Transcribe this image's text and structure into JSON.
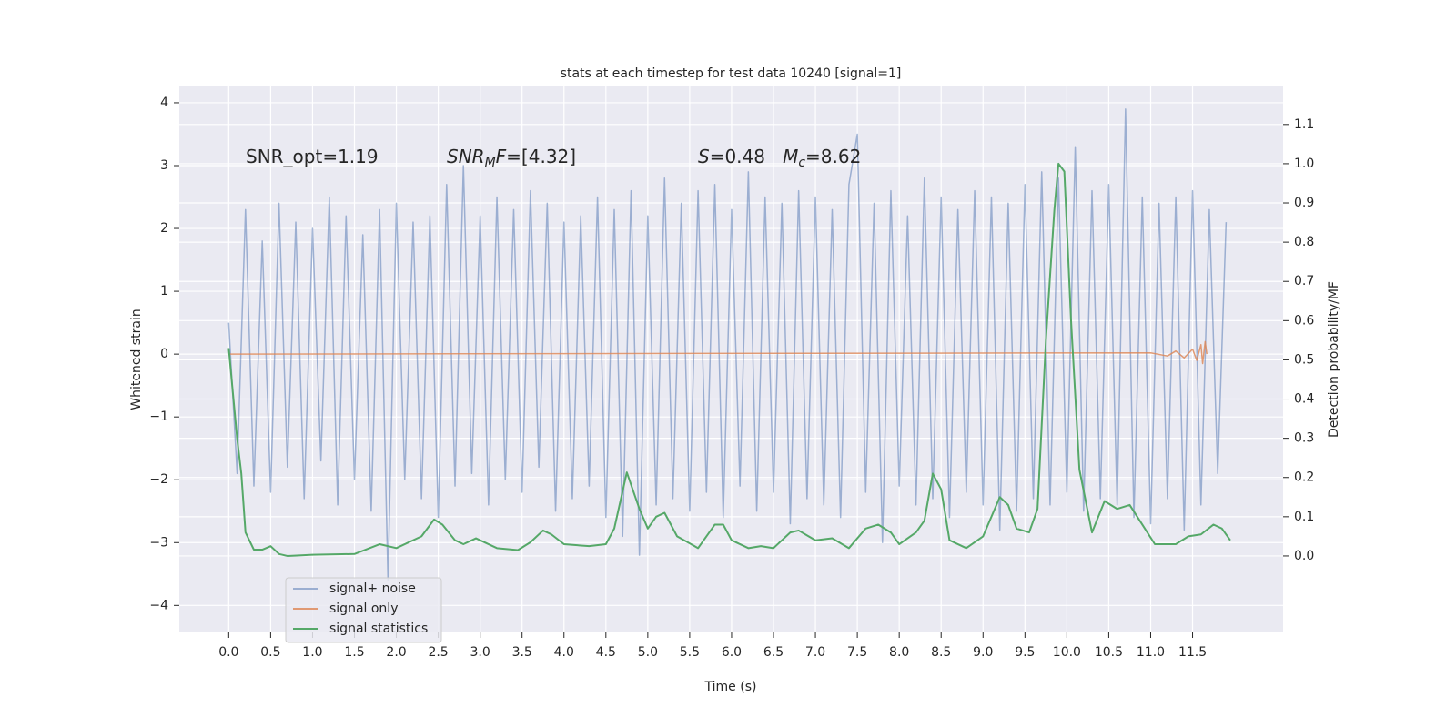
{
  "chart_data": {
    "type": "line",
    "title": "stats at each timestep for test data 10240 [signal=1]",
    "x_label": "Time (s)",
    "y_label": "Whitened strain",
    "y2_label": "Detection probability/MF",
    "xlim": [
      -0.59,
      12.58
    ],
    "ylim": [
      -4.43,
      4.26
    ],
    "y2lim": [
      -0.195,
      1.197
    ],
    "xticks": [
      {
        "value": 0,
        "label": "0.0"
      },
      0.5,
      {
        "value": 1,
        "label": "1.0"
      },
      1.5,
      {
        "value": 2,
        "label": "2.0"
      },
      2.5,
      {
        "value": 3,
        "label": "3.0"
      },
      3.5,
      {
        "value": 4,
        "label": "4.0"
      },
      4.5,
      {
        "value": 5,
        "label": "5.0"
      },
      5.5,
      {
        "value": 6,
        "label": "6.0"
      },
      6.5,
      {
        "value": 7,
        "label": "7.0"
      },
      7.5,
      {
        "value": 8,
        "label": "8.0"
      },
      8.5,
      {
        "value": 9,
        "label": "9.0"
      },
      9.5,
      {
        "value": 10,
        "label": "10.0"
      },
      10.5,
      {
        "value": 11,
        "label": "11.0"
      },
      11.5
    ],
    "yticks": [
      {
        "value": -4,
        "label": "−4"
      },
      {
        "value": -3,
        "label": "−3"
      },
      {
        "value": -2,
        "label": "−2"
      },
      {
        "value": -1,
        "label": "−1"
      },
      0,
      1,
      2,
      3,
      4
    ],
    "y2ticks": [
      {
        "value": 0,
        "label": "0.0"
      },
      0.1,
      0.2,
      0.3,
      0.4,
      0.5,
      0.6,
      0.7,
      0.8,
      0.9,
      {
        "value": 1,
        "label": "1.0"
      },
      1.1
    ],
    "grid": true,
    "legend": "lower left",
    "annotations": [
      {
        "segments": [
          {
            "text": "SNR_opt=1.19"
          }
        ]
      },
      {
        "segments": [
          {
            "text": "SNR",
            "italic": true
          },
          {
            "text": "M",
            "italic": true,
            "sub": true
          },
          {
            "text": "F",
            "italic": true
          },
          {
            "text": "=[4.32]"
          }
        ]
      },
      {
        "segments": [
          {
            "text": "S",
            "italic": true
          },
          {
            "text": "=0.48   "
          },
          {
            "text": "M",
            "italic": true
          },
          {
            "text": "c",
            "italic": true,
            "sub": true
          },
          {
            "text": "=8.62"
          }
        ]
      }
    ],
    "series": [
      {
        "name": "signal+ noise",
        "color": "#4c72b0",
        "opacity": 0.5,
        "x": [
          0.0,
          0.1,
          0.2,
          0.3,
          0.4,
          0.5,
          0.6,
          0.7,
          0.8,
          0.9,
          1.0,
          1.1,
          1.2,
          1.3,
          1.4,
          1.5,
          1.6,
          1.7,
          1.8,
          1.9,
          2.0,
          2.1,
          2.2,
          2.3,
          2.4,
          2.5,
          2.6,
          2.7,
          2.8,
          2.9,
          3.0,
          3.1,
          3.2,
          3.3,
          3.4,
          3.5,
          3.6,
          3.7,
          3.8,
          3.9,
          4.0,
          4.1,
          4.2,
          4.3,
          4.4,
          4.5,
          4.6,
          4.7,
          4.8,
          4.9,
          5.0,
          5.1,
          5.2,
          5.3,
          5.4,
          5.5,
          5.6,
          5.7,
          5.8,
          5.9,
          6.0,
          6.1,
          6.2,
          6.3,
          6.4,
          6.5,
          6.6,
          6.7,
          6.8,
          6.9,
          7.0,
          7.1,
          7.2,
          7.3,
          7.4,
          7.5,
          7.6,
          7.7,
          7.8,
          7.9,
          8.0,
          8.1,
          8.2,
          8.3,
          8.4,
          8.5,
          8.6,
          8.7,
          8.8,
          8.9,
          9.0,
          9.1,
          9.2,
          9.3,
          9.4,
          9.5,
          9.6,
          9.7,
          9.8,
          9.9,
          10.0,
          10.1,
          10.2,
          10.3,
          10.4,
          10.5,
          10.6,
          10.7,
          10.8,
          10.9,
          11.0,
          11.1,
          11.2,
          11.3,
          11.4,
          11.5,
          11.6,
          11.7,
          11.8,
          11.9
        ],
        "values": [
          0.5,
          -1.9,
          2.3,
          -2.1,
          1.8,
          -2.2,
          2.4,
          -1.8,
          2.1,
          -2.3,
          2.0,
          -1.7,
          2.5,
          -2.4,
          2.2,
          -2.0,
          1.9,
          -2.5,
          2.3,
          -3.6,
          2.4,
          -2.0,
          2.1,
          -2.3,
          2.2,
          -2.6,
          2.7,
          -2.1,
          3.0,
          -1.9,
          2.2,
          -2.4,
          2.5,
          -2.0,
          2.3,
          -2.2,
          2.6,
          -1.8,
          2.4,
          -2.5,
          2.1,
          -2.3,
          2.2,
          -2.1,
          2.5,
          -2.6,
          2.3,
          -2.9,
          2.6,
          -3.2,
          2.2,
          -2.4,
          2.8,
          -2.3,
          2.4,
          -2.5,
          2.6,
          -2.2,
          2.7,
          -2.6,
          2.3,
          -2.1,
          2.9,
          -2.5,
          2.5,
          -2.2,
          2.4,
          -2.7,
          2.6,
          -2.3,
          2.5,
          -2.4,
          2.3,
          -2.6,
          2.7,
          3.5,
          -2.2,
          2.4,
          -3.0,
          2.6,
          -2.1,
          2.2,
          -2.4,
          2.8,
          -2.3,
          2.5,
          -2.6,
          2.3,
          -2.2,
          2.6,
          -2.4,
          2.5,
          -2.8,
          2.4,
          -2.5,
          2.7,
          -2.3,
          2.9,
          -2.4,
          2.8,
          -2.2,
          3.3,
          -2.5,
          2.6,
          -2.3,
          2.7,
          -2.4,
          3.9,
          -2.6,
          2.5,
          -2.7,
          2.4,
          -2.3,
          2.5,
          -2.8,
          2.6,
          -2.4,
          2.3,
          -1.9,
          2.1
        ]
      },
      {
        "name": "signal only",
        "color": "#dd8452",
        "opacity": 0.8,
        "x": [
          0.0,
          11.0,
          11.2,
          11.3,
          11.4,
          11.5,
          11.55,
          11.6,
          11.62,
          11.65,
          11.67
        ],
        "values": [
          0,
          0.02,
          -0.03,
          0.05,
          -0.06,
          0.08,
          -0.1,
          0.15,
          -0.15,
          0.2,
          0
        ]
      },
      {
        "name": "signal statistics",
        "color": "#55a868",
        "opacity": 1,
        "axis": "y2",
        "x": [
          0.0,
          0.1,
          0.15,
          0.2,
          0.3,
          0.4,
          0.5,
          0.6,
          0.7,
          1.0,
          1.5,
          1.8,
          2.0,
          2.3,
          2.45,
          2.55,
          2.7,
          2.8,
          2.95,
          3.2,
          3.45,
          3.6,
          3.75,
          3.85,
          4.0,
          4.3,
          4.5,
          4.6,
          4.75,
          4.9,
          5.0,
          5.1,
          5.2,
          5.35,
          5.6,
          5.8,
          5.9,
          6.0,
          6.2,
          6.35,
          6.5,
          6.7,
          6.8,
          7.0,
          7.2,
          7.4,
          7.6,
          7.75,
          7.9,
          8.0,
          8.2,
          8.3,
          8.4,
          8.5,
          8.6,
          8.8,
          9.0,
          9.2,
          9.3,
          9.4,
          9.55,
          9.65,
          9.75,
          9.85,
          9.9,
          9.97,
          10.05,
          10.15,
          10.3,
          10.45,
          10.6,
          10.75,
          10.9,
          11.05,
          11.3,
          11.45,
          11.6,
          11.75,
          11.85,
          11.95
        ],
        "values": [
          0.53,
          0.3,
          0.21,
          0.06,
          0.016,
          0.016,
          0.025,
          0.005,
          0.0,
          0.003,
          0.005,
          0.03,
          0.02,
          0.05,
          0.093,
          0.08,
          0.04,
          0.03,
          0.045,
          0.02,
          0.015,
          0.035,
          0.065,
          0.055,
          0.03,
          0.025,
          0.03,
          0.07,
          0.213,
          0.12,
          0.07,
          0.1,
          0.11,
          0.05,
          0.02,
          0.08,
          0.08,
          0.04,
          0.02,
          0.025,
          0.02,
          0.06,
          0.065,
          0.04,
          0.045,
          0.02,
          0.07,
          0.08,
          0.06,
          0.03,
          0.06,
          0.09,
          0.21,
          0.17,
          0.04,
          0.02,
          0.05,
          0.15,
          0.13,
          0.07,
          0.06,
          0.12,
          0.55,
          0.88,
          1.0,
          0.98,
          0.6,
          0.22,
          0.06,
          0.14,
          0.12,
          0.13,
          0.08,
          0.03,
          0.03,
          0.05,
          0.055,
          0.08,
          0.07,
          0.04
        ]
      }
    ]
  }
}
